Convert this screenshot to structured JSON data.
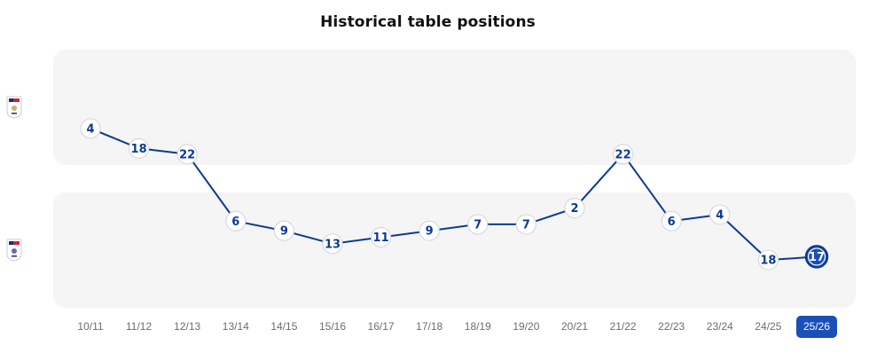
{
  "chart_data": {
    "type": "line",
    "title": "Historical table positions",
    "x": [
      "10/11",
      "11/12",
      "12/13",
      "13/14",
      "14/15",
      "15/16",
      "16/17",
      "17/18",
      "18/19",
      "19/20",
      "20/21",
      "21/22",
      "22/23",
      "23/24",
      "24/25",
      "25/26"
    ],
    "positions": [
      4,
      18,
      22,
      6,
      9,
      13,
      11,
      9,
      7,
      7,
      2,
      22,
      6,
      4,
      18,
      17
    ],
    "divisions": [
      "upper",
      "upper",
      "upper",
      "lower",
      "lower",
      "lower",
      "lower",
      "lower",
      "lower",
      "lower",
      "lower",
      "upper",
      "lower",
      "lower",
      "lower",
      "lower"
    ],
    "series": [
      {
        "values": [
          4,
          18,
          22,
          6,
          9,
          13,
          11,
          9,
          7,
          7,
          2,
          22,
          6,
          4,
          18,
          17
        ]
      }
    ],
    "current_season": "25/26",
    "bands": [
      {
        "id": "upper",
        "icon": "sky-bet-efl-championship-icon"
      },
      {
        "id": "lower",
        "icon": "sky-bet-efl-league-one-icon"
      }
    ],
    "colors": {
      "line": "#0b3a94",
      "marker_fill": "#ffffff",
      "marker_stroke": "#d6d9e2",
      "label": "#0b3a94",
      "current_fill": "#1b4fb8",
      "current_stroke": "#0b3a94",
      "band": "#f5f5f6"
    }
  }
}
